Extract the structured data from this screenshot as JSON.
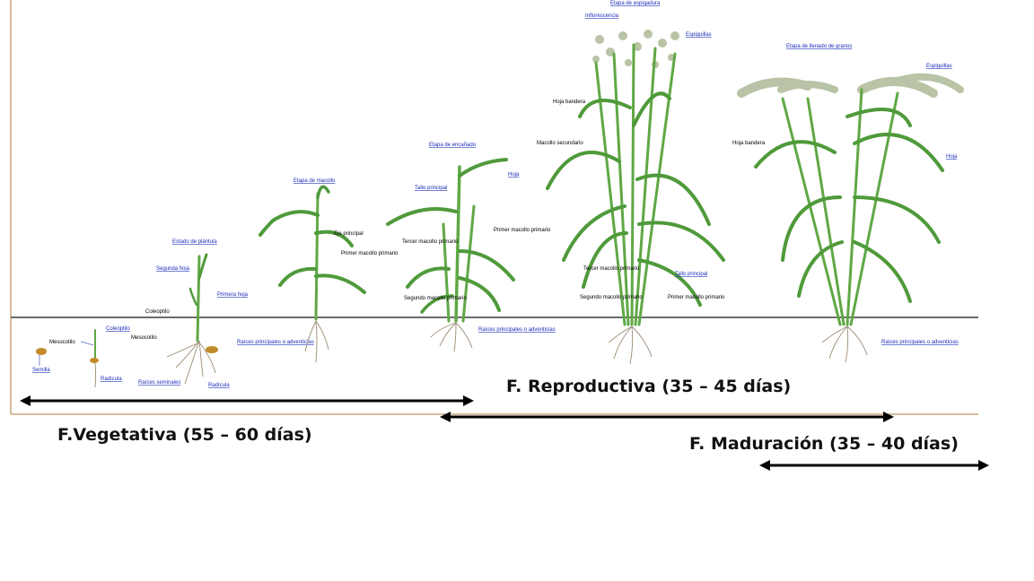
{
  "stages": {
    "plantula": "Estado de plántula",
    "macollo": "Etapa de macollo",
    "encanado": "Etapa de encañado",
    "espigadura": "Etapa de espigadura",
    "llenado": "Etapa de llenado de granos"
  },
  "labels": {
    "semilla": "Semilla",
    "mesocotilo": "Mesocotilo",
    "coleoptilo": "Coleoptilo",
    "radicula": "Radícula",
    "segunda_hoja": "Segunda hoja",
    "primera_hoja": "Primera hoja",
    "coleoptilo2": "Coleoptilo",
    "mesocotilo2": "Mesocotilo",
    "raices_adv": "Raíces principales o adventicias",
    "raices_sem": "Raíces seminales",
    "radicula2": "Radícula",
    "eje_principal": "Eje principal",
    "primer_macollo": "Primer macollo primario",
    "tallo_principal": "Tallo principal",
    "hoja": "Hoja",
    "tercer_macollo": "Tercer macollo primario",
    "primer_macollo2": "Primer macollo primario",
    "segundo_macollo": "Segundo macollo primario",
    "raices_adv2": "Raíces principales o adventicias",
    "inflorescencia": "Inflorescencia",
    "espiguillas": "Espiguillas",
    "hoja_bandera": "Hoja bandera",
    "macollo_secundario": "Macollo secundario",
    "tercer_macollo2": "Tercer macollo primario",
    "tallo_principal2": "Tallo principal",
    "segundo_macollo2": "Segundo macollo primario",
    "primer_macollo3": "Primer macollo primario",
    "espiguillas2": "Espiguillas",
    "hoja_bandera2": "Hoja bandera",
    "hoja2": "Hoja",
    "raices_adv3": "Raíces principales o adventicias"
  },
  "phases": {
    "vegetativa": "F.Vegetativa (55 – 60 días)",
    "reproductiva": "F. Reproductiva (35 – 45 días)",
    "maduracion": "F. Maduración  (35 – 40 días)"
  },
  "colors": {
    "leaf": "#4f9a3a",
    "ground": "#6b6b6b",
    "frame": "#c9a77a",
    "label_blue": "#1a2bb8",
    "arrow": "#000000"
  }
}
